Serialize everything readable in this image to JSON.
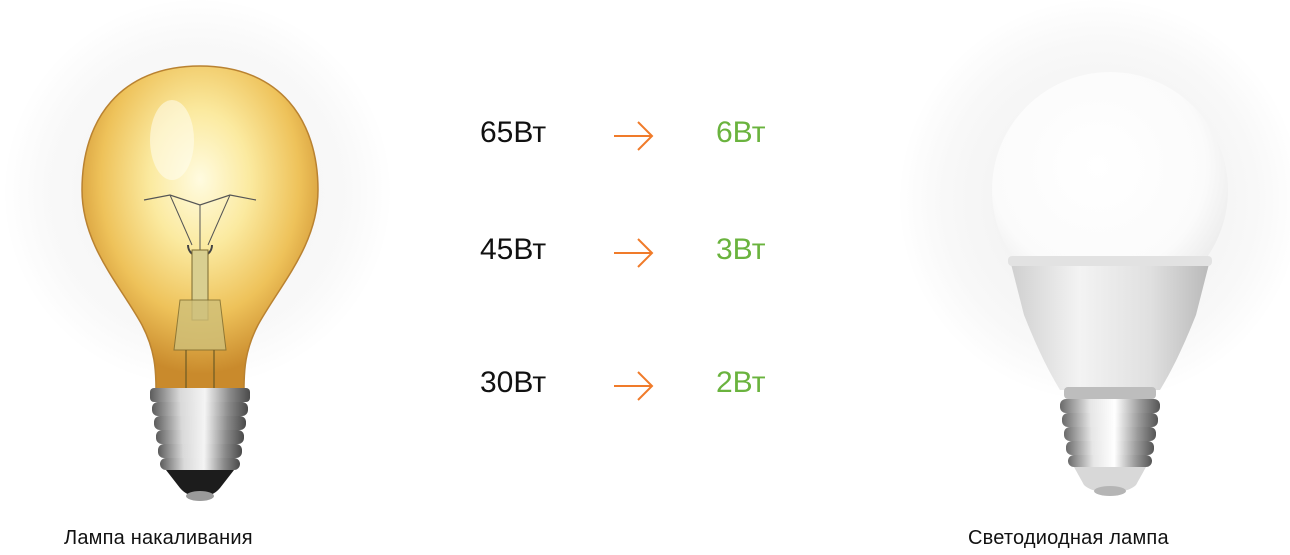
{
  "colors": {
    "accent_arrow": "#f07b2a",
    "new_value": "#6ab33e",
    "old_value": "#111111"
  },
  "left_lamp": {
    "caption": "Лампа накаливания",
    "image": "incandescent-bulb"
  },
  "right_lamp": {
    "caption": "Светодиодная лампа",
    "image": "led-bulb"
  },
  "comparisons": [
    {
      "old": "65Вт",
      "new": "6Вт",
      "icon": "arrow-right-icon"
    },
    {
      "old": "45Вт",
      "new": "3Вт",
      "icon": "arrow-right-icon"
    },
    {
      "old": "30Вт",
      "new": "2Вт",
      "icon": "arrow-right-icon"
    }
  ]
}
